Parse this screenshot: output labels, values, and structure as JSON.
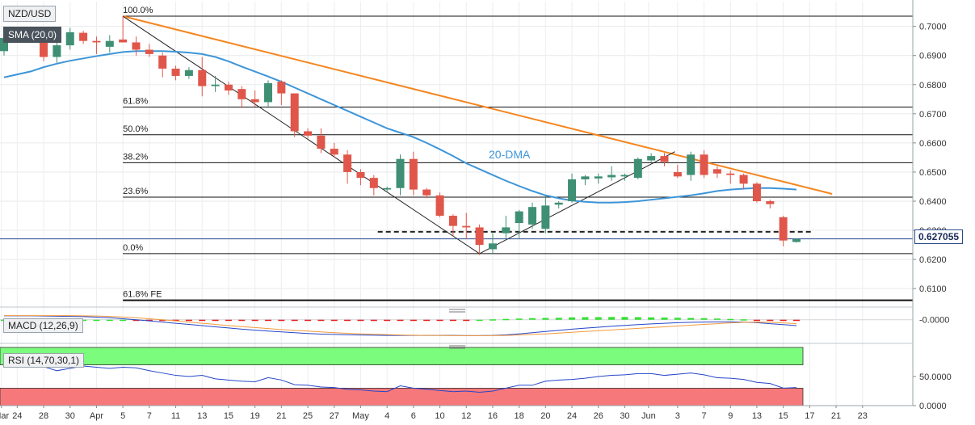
{
  "symbol": "NZD/USD",
  "overlay_label": "SMA (20,0)",
  "sma_annotation": "20-DMA",
  "current_price": "0.627055",
  "macd_label": "MACD (12,26,9)",
  "macd_tick": "-0.0000",
  "rsi_label": "RSI (14,70,30,1)",
  "rsi_ticks": [
    "50.0000",
    "0.0000"
  ],
  "colors": {
    "up": "#3f8f74",
    "down": "#e0564a",
    "sma": "#3d95d8",
    "trend": "#f5861f",
    "macd_pos": "#33e033",
    "macd_neg": "#e81e1e",
    "rsi_over": "#7cfc7c",
    "rsi_under": "#f7787a"
  },
  "chart_data": {
    "type": "candlestick",
    "y_ticks": [
      "0.7000",
      "0.6900",
      "0.6800",
      "0.6700",
      "0.6600",
      "0.6500",
      "0.6400",
      "0.6300",
      "0.6200",
      "0.6100"
    ],
    "ylim": [
      0.6045,
      0.7085
    ],
    "x_labels": [
      {
        "label": "Mar",
        "i": -0.2
      },
      {
        "label": "24",
        "i": 1
      },
      {
        "label": "28",
        "i": 3
      },
      {
        "label": "30",
        "i": 5
      },
      {
        "label": "Apr",
        "i": 7
      },
      {
        "label": "5",
        "i": 9
      },
      {
        "label": "7",
        "i": 11
      },
      {
        "label": "11",
        "i": 13
      },
      {
        "label": "13",
        "i": 15
      },
      {
        "label": "15",
        "i": 17
      },
      {
        "label": "19",
        "i": 19
      },
      {
        "label": "21",
        "i": 21
      },
      {
        "label": "25",
        "i": 23
      },
      {
        "label": "27",
        "i": 25
      },
      {
        "label": "May",
        "i": 27
      },
      {
        "label": "4",
        "i": 29
      },
      {
        "label": "6",
        "i": 31
      },
      {
        "label": "10",
        "i": 33
      },
      {
        "label": "12",
        "i": 35
      },
      {
        "label": "16",
        "i": 37
      },
      {
        "label": "18",
        "i": 39
      },
      {
        "label": "20",
        "i": 41
      },
      {
        "label": "24",
        "i": 43
      },
      {
        "label": "26",
        "i": 45
      },
      {
        "label": "30",
        "i": 47
      },
      {
        "label": "Jun",
        "i": 48.8
      },
      {
        "label": "3",
        "i": 51
      },
      {
        "label": "7",
        "i": 53
      },
      {
        "label": "9",
        "i": 55
      },
      {
        "label": "13",
        "i": 57
      },
      {
        "label": "15",
        "i": 59
      },
      {
        "label": "17",
        "i": 61
      },
      {
        "label": "21",
        "i": 63
      },
      {
        "label": "23",
        "i": 65
      }
    ],
    "candles": [
      {
        "o": 0.6915,
        "h": 0.6975,
        "l": 0.69,
        "c": 0.696
      },
      {
        "o": 0.696,
        "h": 0.6985,
        "l": 0.6945,
        "c": 0.697
      },
      {
        "o": 0.6968,
        "h": 0.6988,
        "l": 0.6955,
        "c": 0.6962
      },
      {
        "o": 0.696,
        "h": 0.6972,
        "l": 0.688,
        "c": 0.6895
      },
      {
        "o": 0.6895,
        "h": 0.6945,
        "l": 0.6875,
        "c": 0.6935
      },
      {
        "o": 0.6935,
        "h": 0.6995,
        "l": 0.692,
        "c": 0.698
      },
      {
        "o": 0.6978,
        "h": 0.6985,
        "l": 0.694,
        "c": 0.695
      },
      {
        "o": 0.695,
        "h": 0.6965,
        "l": 0.6905,
        "c": 0.6945
      },
      {
        "o": 0.693,
        "h": 0.697,
        "l": 0.691,
        "c": 0.695
      },
      {
        "o": 0.6955,
        "h": 0.7035,
        "l": 0.695,
        "c": 0.6945
      },
      {
        "o": 0.6945,
        "h": 0.6965,
        "l": 0.69,
        "c": 0.692
      },
      {
        "o": 0.692,
        "h": 0.694,
        "l": 0.6895,
        "c": 0.6905
      },
      {
        "o": 0.69,
        "h": 0.691,
        "l": 0.6825,
        "c": 0.6855
      },
      {
        "o": 0.6855,
        "h": 0.6865,
        "l": 0.6815,
        "c": 0.683
      },
      {
        "o": 0.683,
        "h": 0.686,
        "l": 0.682,
        "c": 0.685
      },
      {
        "o": 0.685,
        "h": 0.6895,
        "l": 0.676,
        "c": 0.6795
      },
      {
        "o": 0.6795,
        "h": 0.683,
        "l": 0.6775,
        "c": 0.68
      },
      {
        "o": 0.68,
        "h": 0.681,
        "l": 0.6765,
        "c": 0.678
      },
      {
        "o": 0.6785,
        "h": 0.6795,
        "l": 0.672,
        "c": 0.675
      },
      {
        "o": 0.675,
        "h": 0.678,
        "l": 0.6725,
        "c": 0.674
      },
      {
        "o": 0.674,
        "h": 0.6815,
        "l": 0.6725,
        "c": 0.6805
      },
      {
        "o": 0.681,
        "h": 0.6815,
        "l": 0.673,
        "c": 0.677
      },
      {
        "o": 0.677,
        "h": 0.677,
        "l": 0.662,
        "c": 0.664
      },
      {
        "o": 0.664,
        "h": 0.665,
        "l": 0.6615,
        "c": 0.6625
      },
      {
        "o": 0.6625,
        "h": 0.665,
        "l": 0.6565,
        "c": 0.658
      },
      {
        "o": 0.658,
        "h": 0.66,
        "l": 0.655,
        "c": 0.656
      },
      {
        "o": 0.656,
        "h": 0.6575,
        "l": 0.646,
        "c": 0.65
      },
      {
        "o": 0.65,
        "h": 0.651,
        "l": 0.6455,
        "c": 0.648
      },
      {
        "o": 0.648,
        "h": 0.649,
        "l": 0.642,
        "c": 0.6445
      },
      {
        "o": 0.644,
        "h": 0.645,
        "l": 0.643,
        "c": 0.6445
      },
      {
        "o": 0.6445,
        "h": 0.656,
        "l": 0.642,
        "c": 0.6545
      },
      {
        "o": 0.6545,
        "h": 0.657,
        "l": 0.642,
        "c": 0.644
      },
      {
        "o": 0.644,
        "h": 0.6445,
        "l": 0.641,
        "c": 0.642
      },
      {
        "o": 0.642,
        "h": 0.643,
        "l": 0.6345,
        "c": 0.635
      },
      {
        "o": 0.635,
        "h": 0.6355,
        "l": 0.628,
        "c": 0.6315
      },
      {
        "o": 0.6315,
        "h": 0.636,
        "l": 0.627,
        "c": 0.631
      },
      {
        "o": 0.631,
        "h": 0.632,
        "l": 0.6215,
        "c": 0.625
      },
      {
        "o": 0.6235,
        "h": 0.629,
        "l": 0.622,
        "c": 0.6255
      },
      {
        "o": 0.629,
        "h": 0.635,
        "l": 0.627,
        "c": 0.631
      },
      {
        "o": 0.6325,
        "h": 0.637,
        "l": 0.627,
        "c": 0.6365
      },
      {
        "o": 0.632,
        "h": 0.6395,
        "l": 0.6305,
        "c": 0.638
      },
      {
        "o": 0.6305,
        "h": 0.642,
        "l": 0.629,
        "c": 0.6385
      },
      {
        "o": 0.6388,
        "h": 0.64,
        "l": 0.6375,
        "c": 0.6395
      },
      {
        "o": 0.64,
        "h": 0.6495,
        "l": 0.6395,
        "c": 0.6475
      },
      {
        "o": 0.6475,
        "h": 0.649,
        "l": 0.6455,
        "c": 0.6485
      },
      {
        "o": 0.6478,
        "h": 0.6495,
        "l": 0.646,
        "c": 0.6485
      },
      {
        "o": 0.6482,
        "h": 0.652,
        "l": 0.647,
        "c": 0.649
      },
      {
        "o": 0.6485,
        "h": 0.6495,
        "l": 0.647,
        "c": 0.649
      },
      {
        "o": 0.648,
        "h": 0.655,
        "l": 0.6475,
        "c": 0.6545
      },
      {
        "o": 0.654,
        "h": 0.6565,
        "l": 0.6535,
        "c": 0.6555
      },
      {
        "o": 0.6555,
        "h": 0.6565,
        "l": 0.652,
        "c": 0.6535
      },
      {
        "o": 0.65,
        "h": 0.6525,
        "l": 0.648,
        "c": 0.6485
      },
      {
        "o": 0.649,
        "h": 0.657,
        "l": 0.647,
        "c": 0.656
      },
      {
        "o": 0.656,
        "h": 0.6575,
        "l": 0.648,
        "c": 0.649
      },
      {
        "o": 0.651,
        "h": 0.652,
        "l": 0.648,
        "c": 0.6495
      },
      {
        "o": 0.6495,
        "h": 0.6505,
        "l": 0.646,
        "c": 0.649
      },
      {
        "o": 0.649,
        "h": 0.6495,
        "l": 0.644,
        "c": 0.646
      },
      {
        "o": 0.646,
        "h": 0.6465,
        "l": 0.6395,
        "c": 0.64
      },
      {
        "o": 0.64,
        "h": 0.6405,
        "l": 0.6375,
        "c": 0.639
      },
      {
        "o": 0.6345,
        "h": 0.635,
        "l": 0.6245,
        "c": 0.6265
      },
      {
        "o": 0.626,
        "h": 0.6272,
        "l": 0.6258,
        "c": 0.627
      }
    ],
    "sma20": [
      0.6825,
      0.6835,
      0.6845,
      0.686,
      0.6872,
      0.6882,
      0.689,
      0.6898,
      0.6905,
      0.6912,
      0.6915,
      0.6915,
      0.6915,
      0.6913,
      0.691,
      0.6905,
      0.6895,
      0.688,
      0.6862,
      0.6845,
      0.6828,
      0.681,
      0.679,
      0.677,
      0.675,
      0.673,
      0.671,
      0.669,
      0.667,
      0.665,
      0.6635,
      0.662,
      0.66,
      0.6578,
      0.6555,
      0.653,
      0.651,
      0.649,
      0.647,
      0.6452,
      0.6435,
      0.642,
      0.641,
      0.6402,
      0.6398,
      0.6395,
      0.6395,
      0.6397,
      0.64,
      0.6405,
      0.641,
      0.6415,
      0.642,
      0.6427,
      0.6435,
      0.644,
      0.6443,
      0.6445,
      0.6445,
      0.6443,
      0.644
    ],
    "trendline": {
      "points": [
        [
          9,
          0.7035
        ],
        [
          62.7,
          0.6425
        ]
      ]
    },
    "zigzag": [
      [
        9,
        0.7035
      ],
      [
        36,
        0.622
      ],
      [
        50.8,
        0.657
      ]
    ],
    "support_line": {
      "from_i": 28.3,
      "to_i": 61.3,
      "value": 0.6295
    },
    "fib_levels": [
      {
        "label": "100.0%",
        "value": 0.7035
      },
      {
        "label": "61.8%",
        "value": 0.6723
      },
      {
        "label": "50.0%",
        "value": 0.6628
      },
      {
        "label": "38.2%",
        "value": 0.6532
      },
      {
        "label": "23.6%",
        "value": 0.6414
      },
      {
        "label": "0.0%",
        "value": 0.622
      },
      {
        "label": "61.8% FE",
        "value": 0.606
      }
    ],
    "macd": {
      "ylim": [
        -0.01,
        0.004
      ],
      "hist": [
        0,
        0,
        0,
        0,
        0,
        0,
        0,
        0,
        0,
        0,
        -0.0002,
        -0.0003,
        -0.0004,
        -0.0005,
        -0.0005,
        -0.0005,
        -0.0006,
        -0.0006,
        -0.0006,
        -0.0006,
        -0.0006,
        -0.0006,
        -0.0006,
        -0.0006,
        -0.0006,
        -0.0005,
        -0.0005,
        -0.0005,
        -0.0004,
        -0.0004,
        -0.0003,
        -0.0002,
        -0.0002,
        -0.0002,
        -0.0001,
        -0.0001,
        0,
        0.0002,
        0.0004,
        0.0006,
        0.0008,
        0.0009,
        0.001,
        0.0012,
        0.0013,
        0.0013,
        0.0014,
        0.0014,
        0.0013,
        0.0012,
        0.0011,
        0.001,
        0.0009,
        0.0008,
        0.0006,
        0.0004,
        0.0002,
        -0.0001,
        -0.0003,
        -0.0004,
        -0.0004
      ],
      "macd": [
        0.002,
        0.002,
        0.002,
        0.0019,
        0.0018,
        0.0017,
        0.0016,
        0.0013,
        0.001,
        0.0005,
        0.0,
        -0.0006,
        -0.0012,
        -0.0018,
        -0.0024,
        -0.003,
        -0.0036,
        -0.0042,
        -0.0048,
        -0.0053,
        -0.0058,
        -0.0062,
        -0.0066,
        -0.007,
        -0.0073,
        -0.0075,
        -0.0077,
        -0.0078,
        -0.0079,
        -0.008,
        -0.008,
        -0.008,
        -0.008,
        -0.008,
        -0.008,
        -0.0081,
        -0.0081,
        -0.008,
        -0.0077,
        -0.0072,
        -0.0066,
        -0.006,
        -0.0054,
        -0.0048,
        -0.0043,
        -0.0038,
        -0.0033,
        -0.0029,
        -0.0025,
        -0.0021,
        -0.0018,
        -0.0015,
        -0.0013,
        -0.0012,
        -0.0011,
        -0.0011,
        -0.0012,
        -0.0015,
        -0.002,
        -0.0025,
        -0.003
      ],
      "signal": [
        0.0021,
        0.0021,
        0.0021,
        0.0021,
        0.0021,
        0.0021,
        0.002,
        0.0019,
        0.0017,
        0.0014,
        0.001,
        0.0005,
        0.0,
        -0.0006,
        -0.0012,
        -0.0018,
        -0.0024,
        -0.003,
        -0.0035,
        -0.004,
        -0.0045,
        -0.005,
        -0.0054,
        -0.0058,
        -0.0062,
        -0.0066,
        -0.0069,
        -0.0072,
        -0.0074,
        -0.0076,
        -0.0078,
        -0.0079,
        -0.008,
        -0.008,
        -0.0081,
        -0.0081,
        -0.0081,
        -0.0081,
        -0.008,
        -0.0078,
        -0.0075,
        -0.0072,
        -0.0068,
        -0.0064,
        -0.006,
        -0.0056,
        -0.0052,
        -0.0048,
        -0.0044,
        -0.004,
        -0.0036,
        -0.0032,
        -0.0028,
        -0.0024,
        -0.002,
        -0.0016,
        -0.0013,
        -0.0012,
        -0.0013,
        -0.0016,
        -0.002
      ]
    },
    "rsi": {
      "ylim": [
        0,
        100
      ],
      "overbought": 70,
      "oversold": 30,
      "values": [
        66,
        67,
        68,
        67,
        60,
        64,
        68,
        66,
        64,
        66,
        65,
        60,
        56,
        52,
        50,
        52,
        46,
        44,
        42,
        41,
        48,
        44,
        36,
        35,
        32,
        31,
        28,
        27,
        25,
        24,
        34,
        30,
        28,
        26,
        24,
        25,
        23,
        25,
        30,
        35,
        35,
        42,
        44,
        45,
        47,
        50,
        52,
        53,
        55,
        55,
        52,
        54,
        56,
        53,
        48,
        47,
        45,
        40,
        38,
        30,
        31
      ]
    }
  }
}
